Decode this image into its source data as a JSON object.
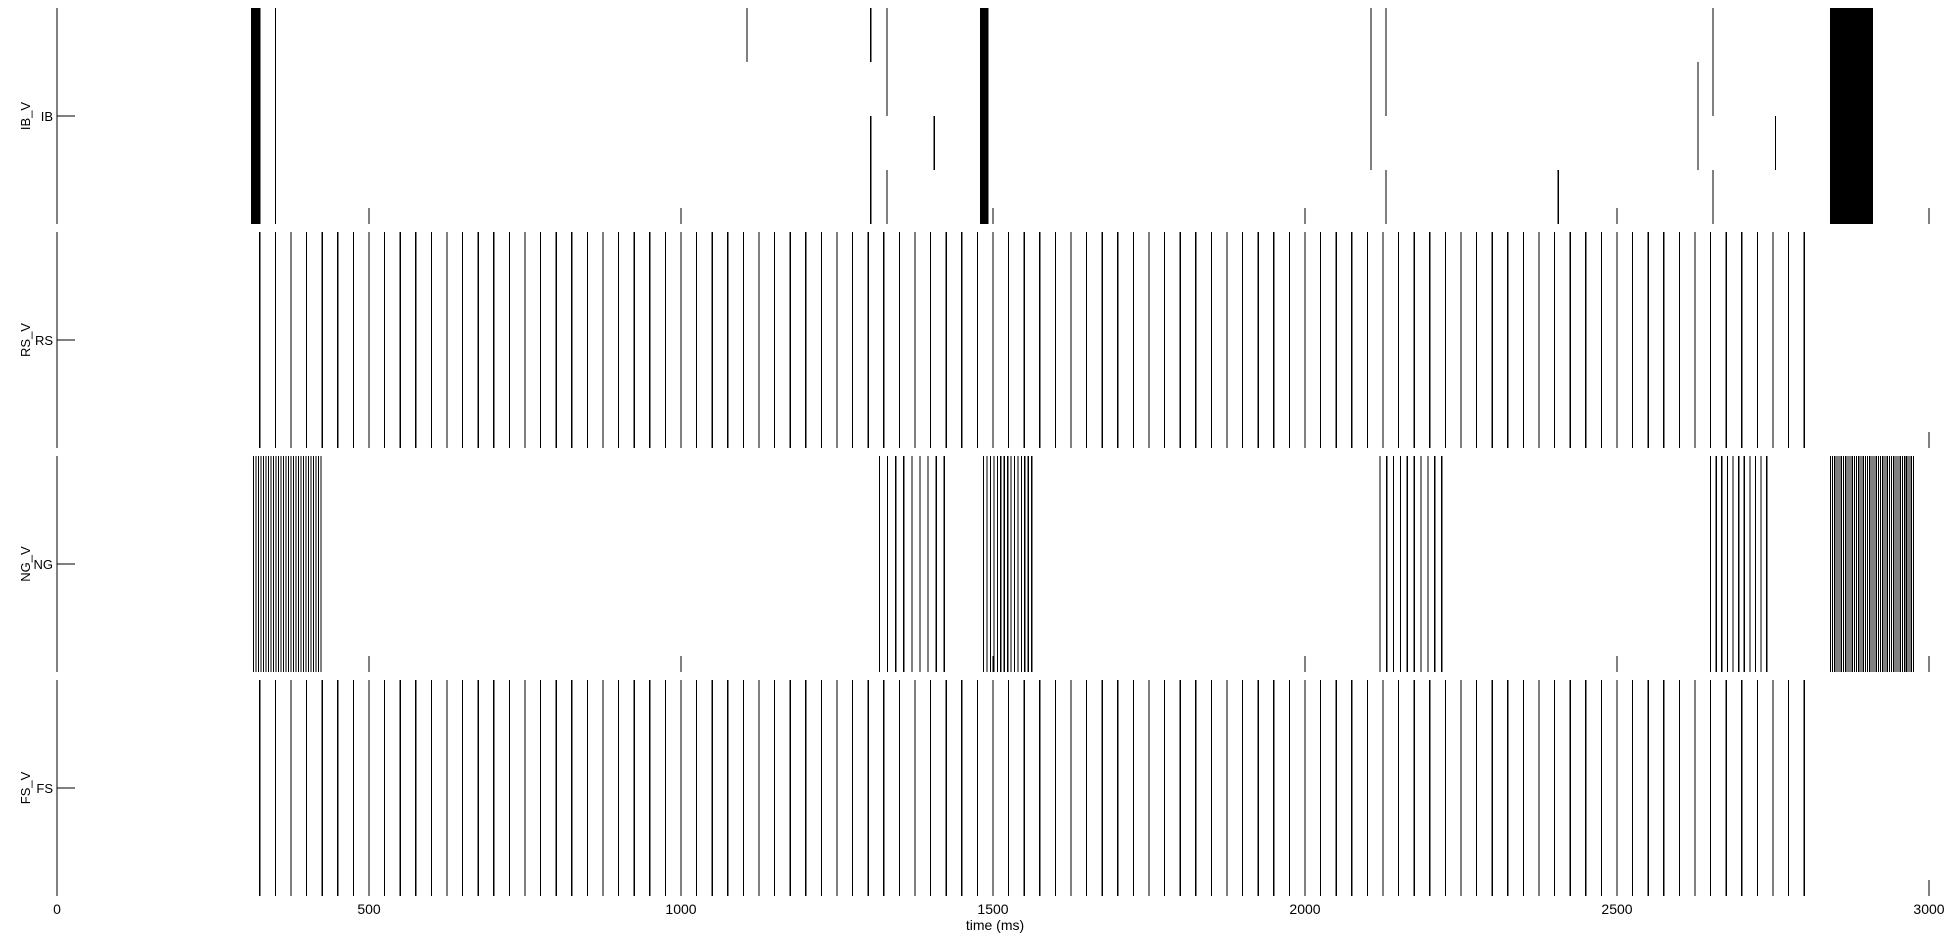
{
  "chart_data": {
    "type": "raster",
    "xlabel": "time (ms)",
    "xlim": [
      0,
      3000
    ],
    "x_ticks": [
      0,
      500,
      1000,
      1500,
      2000,
      2500,
      3000
    ],
    "x_tick_labels": [
      "0",
      "500",
      "1000",
      "1500",
      "2000",
      "2500",
      "3000"
    ],
    "grid": false,
    "panels": [
      {
        "ylabel": "IB_V",
        "ytick_label": "IB",
        "bursts": [
          {
            "from": 312,
            "to": 326,
            "step": 1.5
          },
          {
            "from": 1480,
            "to": 1492,
            "step": 1.5
          },
          {
            "from": 2842,
            "to": 2910,
            "step": 1.2
          }
        ],
        "spikes": [
          {
            "t": 350,
            "row": 0
          },
          {
            "t": 350,
            "row": 1
          },
          {
            "t": 350,
            "row": 2
          },
          {
            "t": 350,
            "row": 3
          },
          {
            "t": 1106,
            "row": 0
          },
          {
            "t": 1304,
            "row": 0
          },
          {
            "t": 1304,
            "row": 2
          },
          {
            "t": 1304,
            "row": 3
          },
          {
            "t": 1330,
            "row": 0
          },
          {
            "t": 1330,
            "row": 1
          },
          {
            "t": 1330,
            "row": 3
          },
          {
            "t": 1406,
            "row": 2
          },
          {
            "t": 2106,
            "row": 0
          },
          {
            "t": 2106,
            "row": 1
          },
          {
            "t": 2106,
            "row": 2
          },
          {
            "t": 2130,
            "row": 0
          },
          {
            "t": 2130,
            "row": 1
          },
          {
            "t": 2130,
            "row": 3
          },
          {
            "t": 2406,
            "row": 3
          },
          {
            "t": 2630,
            "row": 1
          },
          {
            "t": 2630,
            "row": 2
          },
          {
            "t": 2654,
            "row": 0
          },
          {
            "t": 2654,
            "row": 1
          },
          {
            "t": 2654,
            "row": 3
          },
          {
            "t": 2754,
            "row": 2
          }
        ]
      },
      {
        "ylabel": "RS_V",
        "ytick_label": "RS",
        "periodic": {
          "start": 325,
          "period": 25,
          "end": 2800
        }
      },
      {
        "ylabel": "NG_V",
        "ytick_label": "NG",
        "bursts": [
          {
            "from": 315,
            "to": 425,
            "step": 4
          },
          {
            "from": 1318,
            "to": 1425,
            "step": 13
          },
          {
            "from": 1485,
            "to": 1565,
            "step": 5.5
          },
          {
            "from": 2120,
            "to": 2220,
            "step": 11
          },
          {
            "from": 2650,
            "to": 2740,
            "step": 9
          },
          {
            "from": 2842,
            "to": 2975,
            "step": 3.5
          }
        ]
      },
      {
        "ylabel": "FS_V",
        "ytick_label": "FS",
        "periodic": {
          "start": 325,
          "period": 25,
          "end": 2800
        }
      }
    ]
  }
}
